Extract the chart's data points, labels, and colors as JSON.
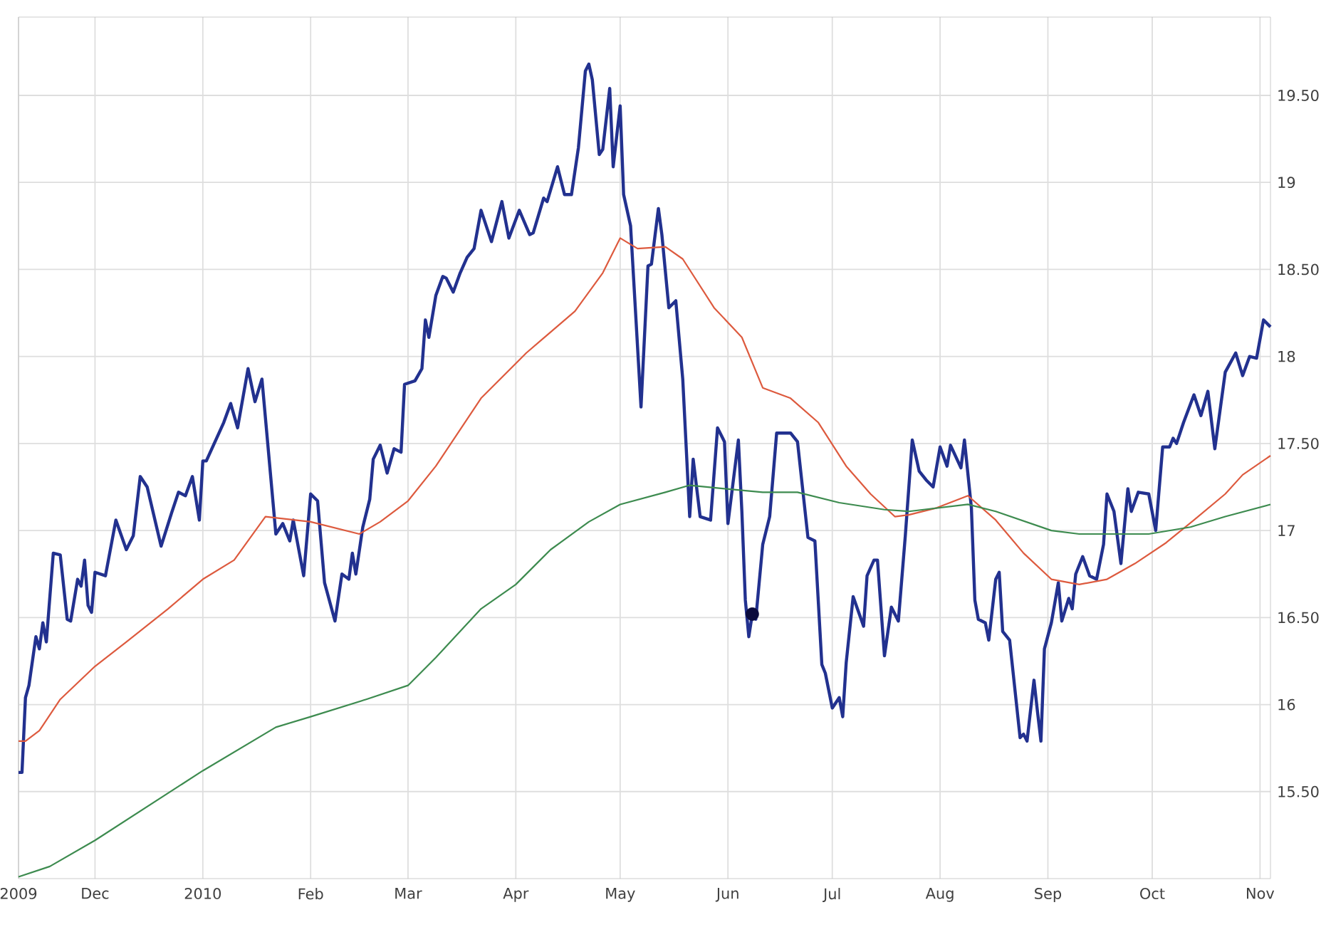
{
  "chart_data": {
    "type": "line",
    "xlim": [
      "2009-11-09",
      "2010-11-04"
    ],
    "ylim": [
      15.0,
      19.95
    ],
    "xticks": [
      {
        "value": "2009-11-09",
        "label": "2009"
      },
      {
        "value": "2009-12-01",
        "label": "Dec"
      },
      {
        "value": "2010-01-01",
        "label": "2010"
      },
      {
        "value": "2010-02-01",
        "label": "Feb"
      },
      {
        "value": "2010-03-01",
        "label": "Mar"
      },
      {
        "value": "2010-04-01",
        "label": "Apr"
      },
      {
        "value": "2010-05-01",
        "label": "May"
      },
      {
        "value": "2010-06-01",
        "label": "Jun"
      },
      {
        "value": "2010-07-01",
        "label": "Jul"
      },
      {
        "value": "2010-08-01",
        "label": "Aug"
      },
      {
        "value": "2010-09-01",
        "label": "Sep"
      },
      {
        "value": "2010-10-01",
        "label": "Oct"
      },
      {
        "value": "2010-11-01",
        "label": "Nov"
      }
    ],
    "yticks": [
      {
        "value": 15.5,
        "label": "15.50"
      },
      16,
      {
        "value": 16.5,
        "label": "16.50"
      },
      17,
      {
        "value": 17.5,
        "label": "17.50"
      },
      18,
      {
        "value": 18.5,
        "label": "18.50"
      },
      19,
      {
        "value": 19.5,
        "label": "19.50"
      }
    ],
    "grid": true,
    "series": [
      {
        "color": "#22318f",
        "x": [
          "2009-11-09",
          "2009-11-10",
          "2009-11-11",
          "2009-11-12",
          "2009-11-14",
          "2009-11-15",
          "2009-11-16",
          "2009-11-17",
          "2009-11-19",
          "2009-11-21",
          "2009-11-23",
          "2009-11-24",
          "2009-11-26",
          "2009-11-27",
          "2009-11-28",
          "2009-11-29",
          "2009-11-30",
          "2009-12-01",
          "2009-12-04",
          "2009-12-07",
          "2009-12-10",
          "2009-12-12",
          "2009-12-14",
          "2009-12-16",
          "2009-12-20",
          "2009-12-23",
          "2009-12-25",
          "2009-12-27",
          "2009-12-29",
          "2009-12-31",
          "2010-01-01",
          "2010-01-02",
          "2010-01-07",
          "2010-01-09",
          "2010-01-11",
          "2010-01-14",
          "2010-01-16",
          "2010-01-18",
          "2010-01-22",
          "2010-01-24",
          "2010-01-26",
          "2010-01-27",
          "2010-01-30",
          "2010-02-01",
          "2010-02-03",
          "2010-02-05",
          "2010-02-08",
          "2010-02-10",
          "2010-02-12",
          "2010-02-13",
          "2010-02-14",
          "2010-02-16",
          "2010-02-18",
          "2010-02-19",
          "2010-02-21",
          "2010-02-23",
          "2010-02-25",
          "2010-02-27",
          "2010-02-28",
          "2010-03-03",
          "2010-03-05",
          "2010-03-06",
          "2010-03-07",
          "2010-03-09",
          "2010-03-11",
          "2010-03-12",
          "2010-03-14",
          "2010-03-16",
          "2010-03-18",
          "2010-03-20",
          "2010-03-22",
          "2010-03-25",
          "2010-03-28",
          "2010-03-30",
          "2010-04-02",
          "2010-04-05",
          "2010-04-06",
          "2010-04-09",
          "2010-04-10",
          "2010-04-13",
          "2010-04-15",
          "2010-04-17",
          "2010-04-19",
          "2010-04-21",
          "2010-04-22",
          "2010-04-23",
          "2010-04-25",
          "2010-04-26",
          "2010-04-28",
          "2010-04-29",
          "2010-05-01",
          "2010-05-02",
          "2010-05-04",
          "2010-05-07",
          "2010-05-09",
          "2010-05-10",
          "2010-05-12",
          "2010-05-13",
          "2010-05-15",
          "2010-05-17",
          "2010-05-19",
          "2010-05-21",
          "2010-05-22",
          "2010-05-24",
          "2010-05-27",
          "2010-05-29",
          "2010-05-31",
          "2010-06-01",
          "2010-06-04",
          "2010-06-05",
          "2010-06-06",
          "2010-06-07",
          "2010-06-08",
          "2010-06-09",
          "2010-06-11",
          "2010-06-13",
          "2010-06-15",
          "2010-06-19",
          "2010-06-21",
          "2010-06-24",
          "2010-06-26",
          "2010-06-28",
          "2010-06-29",
          "2010-07-01",
          "2010-07-03",
          "2010-07-04",
          "2010-07-05",
          "2010-07-07",
          "2010-07-10",
          "2010-07-11",
          "2010-07-13",
          "2010-07-14",
          "2010-07-16",
          "2010-07-18",
          "2010-07-20",
          "2010-07-22",
          "2010-07-24",
          "2010-07-26",
          "2010-07-28",
          "2010-07-30",
          "2010-08-01",
          "2010-08-03",
          "2010-08-04",
          "2010-08-07",
          "2010-08-08",
          "2010-08-10",
          "2010-08-11",
          "2010-08-12",
          "2010-08-14",
          "2010-08-15",
          "2010-08-17",
          "2010-08-18",
          "2010-08-19",
          "2010-08-21",
          "2010-08-24",
          "2010-08-25",
          "2010-08-26",
          "2010-08-28",
          "2010-08-29",
          "2010-08-30",
          "2010-08-31",
          "2010-09-02",
          "2010-09-04",
          "2010-09-05",
          "2010-09-07",
          "2010-09-08",
          "2010-09-09",
          "2010-09-11",
          "2010-09-13",
          "2010-09-15",
          "2010-09-17",
          "2010-09-18",
          "2010-09-20",
          "2010-09-22",
          "2010-09-24",
          "2010-09-25",
          "2010-09-27",
          "2010-09-30",
          "2010-10-02",
          "2010-10-04",
          "2010-10-06",
          "2010-10-07",
          "2010-10-08",
          "2010-10-10",
          "2010-10-13",
          "2010-10-15",
          "2010-10-17",
          "2010-10-19",
          "2010-10-22",
          "2010-10-25",
          "2010-10-27",
          "2010-10-29",
          "2010-10-31",
          "2010-11-02",
          "2010-11-04"
        ],
        "values": [
          15.61,
          15.61,
          16.04,
          16.11,
          16.39,
          16.32,
          16.47,
          16.36,
          16.87,
          16.86,
          16.49,
          16.48,
          16.72,
          16.68,
          16.83,
          16.57,
          16.53,
          16.76,
          16.74,
          17.06,
          16.89,
          16.97,
          17.31,
          17.25,
          16.91,
          17.1,
          17.22,
          17.2,
          17.31,
          17.06,
          17.4,
          17.4,
          17.62,
          17.73,
          17.59,
          17.93,
          17.74,
          17.87,
          16.98,
          17.04,
          16.94,
          17.06,
          16.74,
          17.21,
          17.17,
          16.7,
          16.48,
          16.75,
          16.72,
          16.87,
          16.75,
          17.02,
          17.18,
          17.41,
          17.49,
          17.33,
          17.47,
          17.45,
          17.84,
          17.86,
          17.93,
          18.21,
          18.11,
          18.35,
          18.46,
          18.45,
          18.37,
          18.48,
          18.57,
          18.62,
          18.84,
          18.66,
          18.89,
          18.68,
          18.84,
          18.7,
          18.71,
          18.91,
          18.89,
          19.09,
          18.93,
          18.93,
          19.2,
          19.64,
          19.68,
          19.59,
          19.16,
          19.19,
          19.54,
          19.09,
          19.44,
          18.93,
          18.75,
          17.71,
          18.52,
          18.53,
          18.85,
          18.7,
          18.28,
          18.32,
          17.87,
          17.08,
          17.41,
          17.08,
          17.06,
          17.59,
          17.51,
          17.04,
          17.52,
          17.11,
          16.6,
          16.39,
          16.52,
          16.49,
          16.92,
          17.08,
          17.56,
          17.56,
          17.51,
          16.96,
          16.94,
          16.23,
          16.18,
          15.98,
          16.04,
          15.93,
          16.24,
          16.62,
          16.45,
          16.74,
          16.83,
          16.83,
          16.28,
          16.56,
          16.48,
          16.97,
          17.52,
          17.34,
          17.29,
          17.25,
          17.48,
          17.37,
          17.49,
          17.36,
          17.52,
          17.13,
          16.6,
          16.49,
          16.47,
          16.37,
          16.72,
          16.76,
          16.42,
          16.37,
          15.81,
          15.83,
          15.79,
          16.14,
          15.96,
          15.79,
          16.32,
          16.47,
          16.7,
          16.48,
          16.61,
          16.55,
          16.75,
          16.85,
          16.74,
          16.72,
          16.92,
          17.21,
          17.11,
          16.81,
          17.24,
          17.11,
          17.22,
          17.21,
          17.0,
          17.48,
          17.48,
          17.53,
          17.5,
          17.62,
          17.78,
          17.66,
          17.8,
          17.47,
          17.91,
          18.02,
          17.89,
          18.0,
          17.99,
          18.21,
          18.17
        ]
      },
      {
        "color": "#dd5a3e",
        "x": [
          "2009-11-09",
          "2009-11-11",
          "2009-11-15",
          "2009-11-21",
          "2009-12-01",
          "2009-12-10",
          "2009-12-22",
          "2010-01-01",
          "2010-01-10",
          "2010-01-19",
          "2010-02-01",
          "2010-02-15",
          "2010-02-21",
          "2010-03-01",
          "2010-03-09",
          "2010-03-22",
          "2010-04-04",
          "2010-04-18",
          "2010-04-26",
          "2010-05-01",
          "2010-05-06",
          "2010-05-14",
          "2010-05-19",
          "2010-05-28",
          "2010-06-05",
          "2010-06-11",
          "2010-06-19",
          "2010-06-27",
          "2010-07-05",
          "2010-07-12",
          "2010-07-19",
          "2010-07-23",
          "2010-07-31",
          "2010-08-09",
          "2010-08-17",
          "2010-08-25",
          "2010-09-02",
          "2010-09-10",
          "2010-09-18",
          "2010-09-26",
          "2010-10-05",
          "2010-10-13",
          "2010-10-22",
          "2010-10-27",
          "2010-11-04"
        ],
        "values": [
          15.79,
          15.79,
          15.85,
          16.03,
          16.22,
          16.36,
          16.55,
          16.72,
          16.83,
          17.08,
          17.05,
          16.98,
          17.05,
          17.17,
          17.37,
          17.76,
          18.02,
          18.26,
          18.48,
          18.68,
          18.62,
          18.63,
          18.56,
          18.28,
          18.11,
          17.82,
          17.76,
          17.62,
          17.37,
          17.21,
          17.08,
          17.09,
          17.13,
          17.2,
          17.06,
          16.87,
          16.72,
          16.69,
          16.72,
          16.81,
          16.93,
          17.06,
          17.21,
          17.32,
          17.43
        ]
      },
      {
        "color": "#3d8b4f",
        "x": [
          "2009-11-09",
          "2009-11-18",
          "2009-12-01",
          "2010-01-01",
          "2010-01-22",
          "2010-02-01",
          "2010-02-17",
          "2010-03-01",
          "2010-03-09",
          "2010-03-22",
          "2010-04-01",
          "2010-04-11",
          "2010-04-22",
          "2010-05-01",
          "2010-05-14",
          "2010-05-21",
          "2010-05-31",
          "2010-06-11",
          "2010-06-21",
          "2010-07-03",
          "2010-07-16",
          "2010-07-23",
          "2010-08-09",
          "2010-08-17",
          "2010-09-02",
          "2010-09-10",
          "2010-09-30",
          "2010-10-12",
          "2010-10-22",
          "2010-11-04"
        ],
        "values": [
          15.01,
          15.07,
          15.22,
          15.62,
          15.87,
          15.93,
          16.03,
          16.11,
          16.27,
          16.55,
          16.69,
          16.89,
          17.05,
          17.15,
          17.22,
          17.26,
          17.24,
          17.22,
          17.22,
          17.16,
          17.12,
          17.11,
          17.15,
          17.11,
          17.0,
          16.98,
          16.98,
          17.02,
          17.08,
          17.15
        ]
      },
      {
        "type": "scatter",
        "color": "#0b0b3d",
        "x": [
          "2010-06-08"
        ],
        "values": [
          16.52
        ]
      }
    ]
  }
}
